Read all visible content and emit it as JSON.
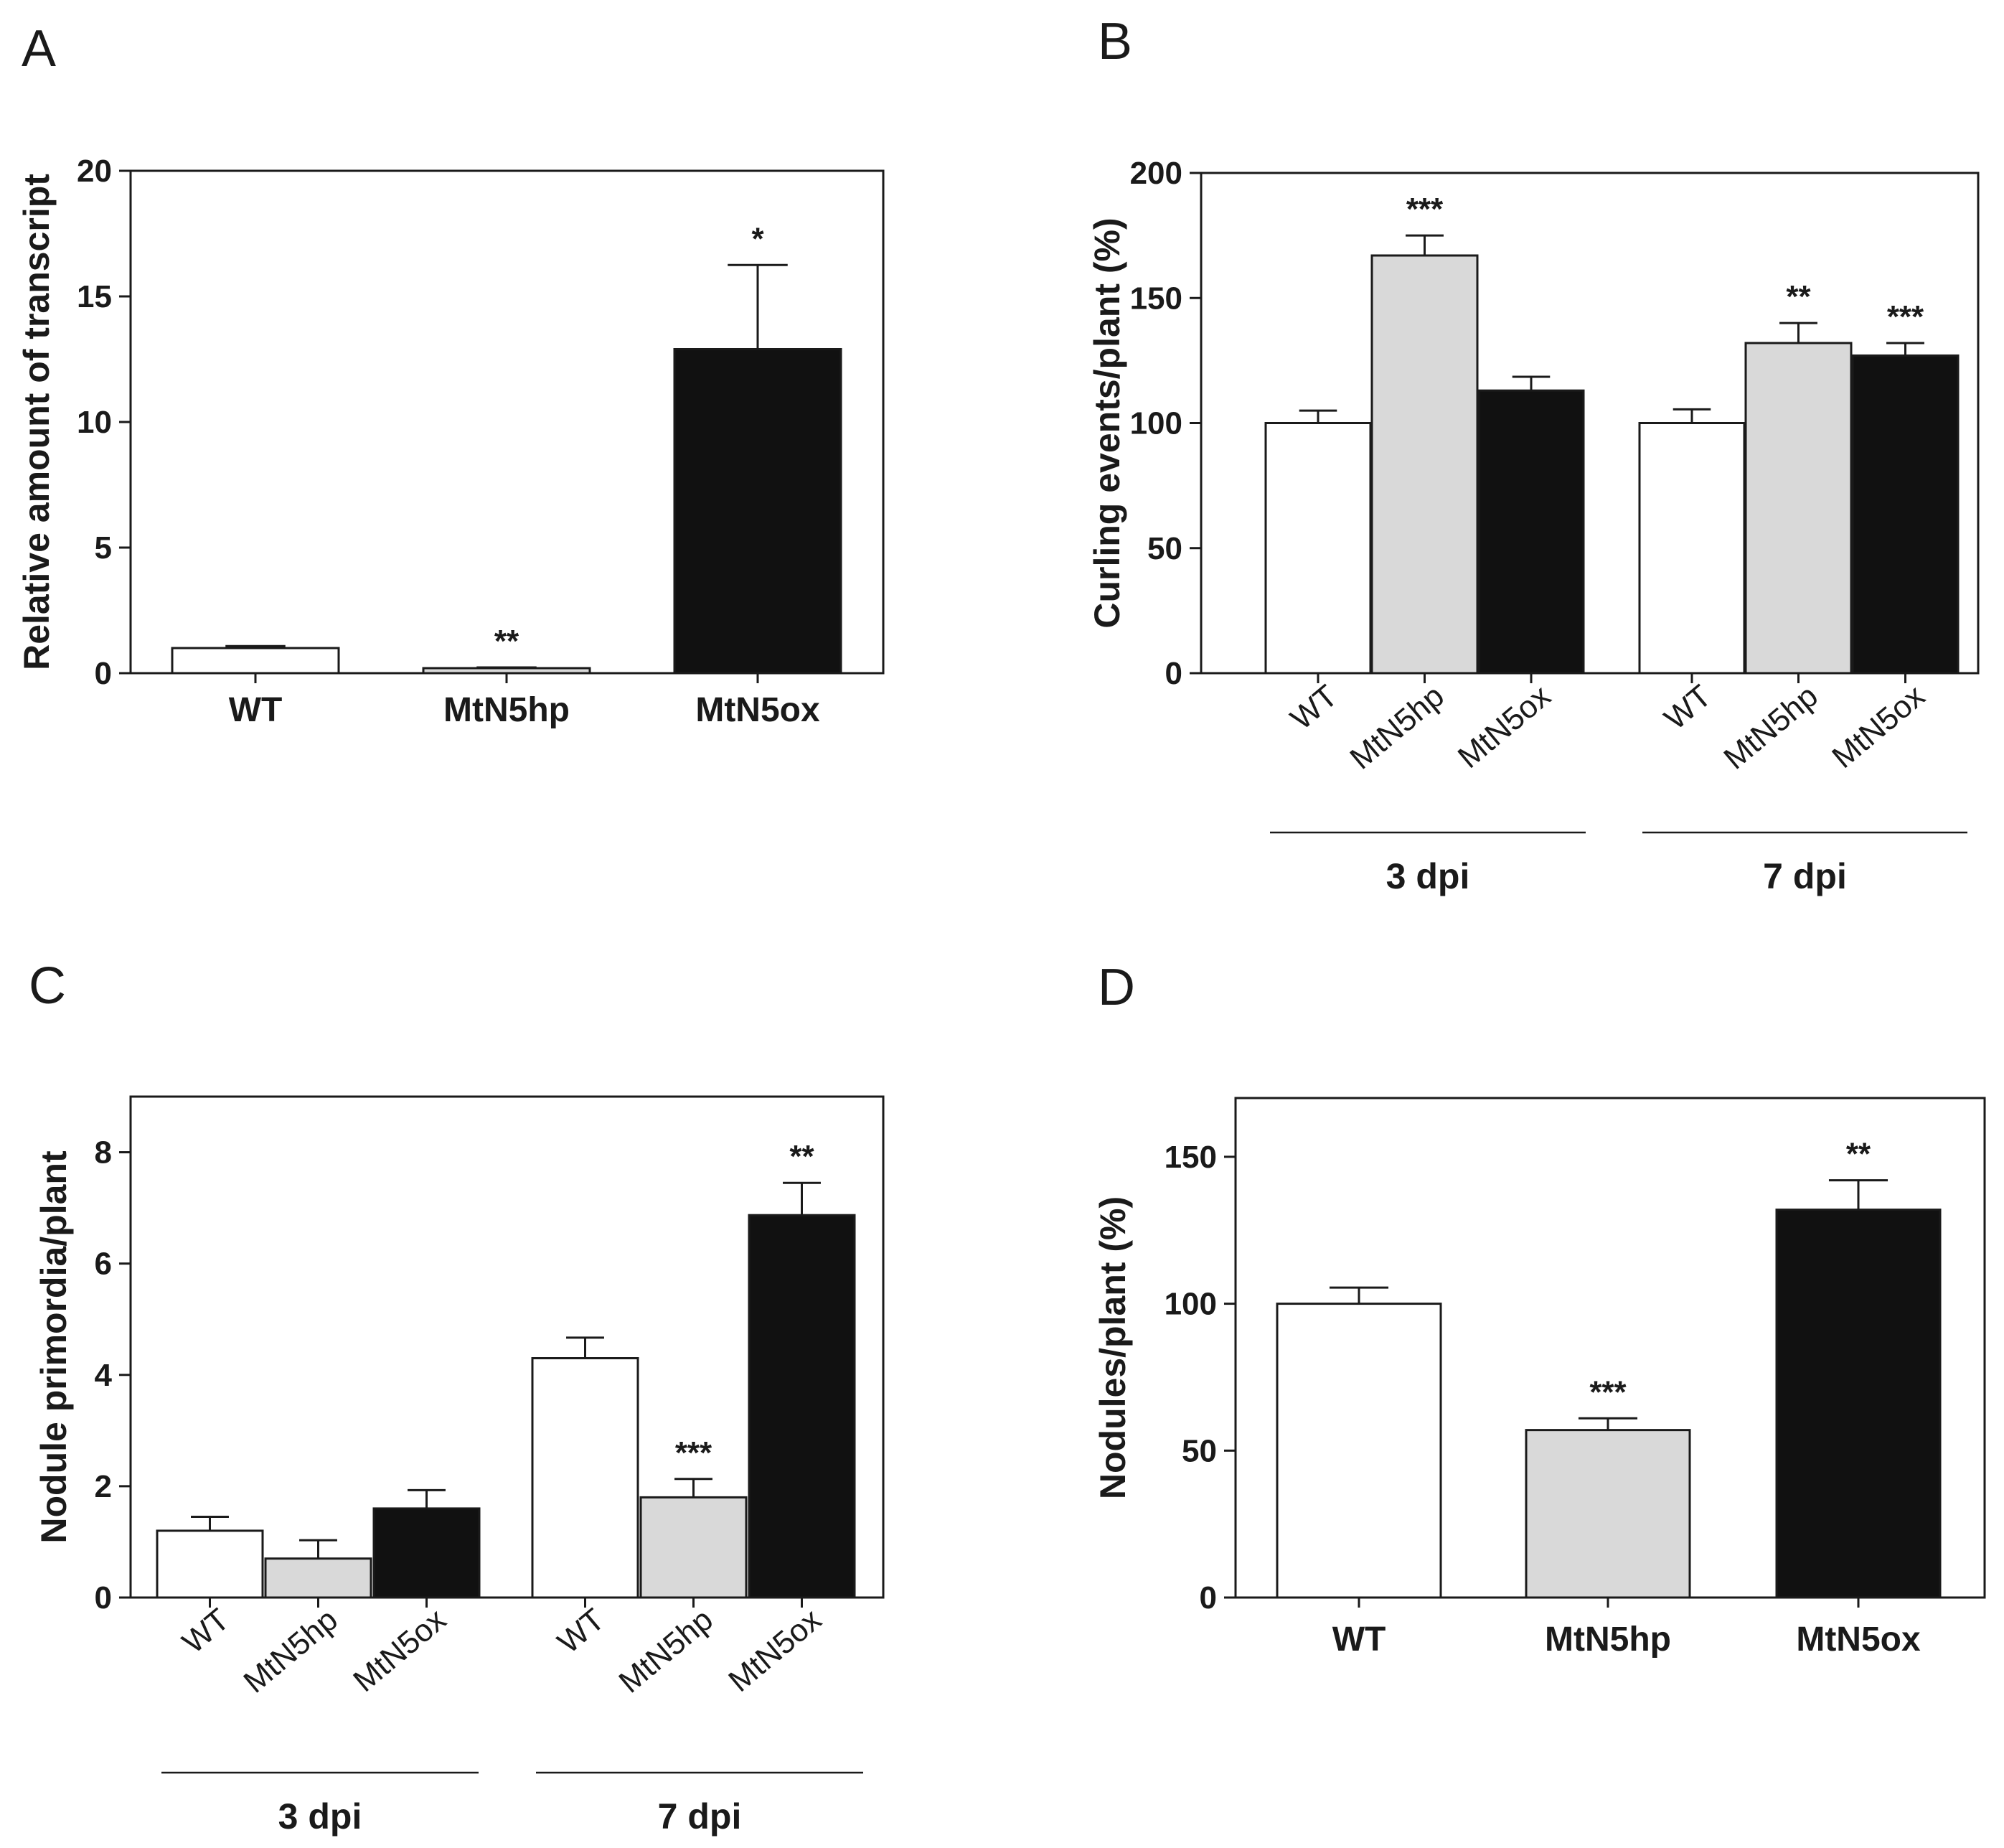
{
  "colors": {
    "WT": "#ffffff",
    "MtN5hp": "#d9d9d9",
    "MtN5ox": "#111111",
    "stroke": "#1a1a1a"
  },
  "chart_data": [
    {
      "id": "A",
      "panel_label": "A",
      "type": "bar",
      "ylabel": "Relative amount of transcript",
      "ylim": [
        0,
        20
      ],
      "yticks": [
        0,
        5,
        10,
        15,
        20
      ],
      "categories": [
        "WT",
        "MtN5hp",
        "MtN5ox"
      ],
      "series": [
        {
          "name": "",
          "values": [
            1.0,
            0.2,
            12.9
          ],
          "errors": [
            0.08,
            0.03,
            3.35
          ],
          "annotations": [
            "",
            "**",
            "*"
          ]
        }
      ]
    },
    {
      "id": "B",
      "panel_label": "B",
      "type": "bar",
      "ylabel": "Curling events/plant (%)",
      "ylim": [
        0,
        200
      ],
      "yticks": [
        0,
        50,
        100,
        150,
        200
      ],
      "groups": [
        "3 dpi",
        "7 dpi"
      ],
      "categories": [
        "WT",
        "MtN5hp",
        "MtN5ox"
      ],
      "series": [
        {
          "name": "3 dpi",
          "values": [
            100,
            167,
            113
          ],
          "errors": [
            5,
            8,
            5.5
          ],
          "annotations": [
            "",
            "***",
            ""
          ]
        },
        {
          "name": "7 dpi",
          "values": [
            100,
            132,
            127
          ],
          "errors": [
            5.5,
            8,
            5
          ],
          "annotations": [
            "",
            "**",
            "***"
          ]
        }
      ]
    },
    {
      "id": "C",
      "panel_label": "C",
      "type": "bar",
      "ylabel": "Nodule primordia/plant",
      "ylim": [
        0,
        9
      ],
      "yticks": [
        0,
        2,
        4,
        6,
        8
      ],
      "groups": [
        "3 dpi",
        "7 dpi"
      ],
      "categories": [
        "WT",
        "MtN5hp",
        "MtN5ox"
      ],
      "series": [
        {
          "name": "3 dpi",
          "values": [
            1.2,
            0.7,
            1.6
          ],
          "errors": [
            0.25,
            0.33,
            0.33
          ],
          "annotations": [
            "",
            "",
            ""
          ]
        },
        {
          "name": "7 dpi",
          "values": [
            4.3,
            1.8,
            6.87
          ],
          "errors": [
            0.37,
            0.33,
            0.58
          ],
          "annotations": [
            "",
            "***",
            "**"
          ]
        }
      ]
    },
    {
      "id": "D",
      "panel_label": "D",
      "type": "bar",
      "ylabel": "Nodules/plant (%)",
      "ylim": [
        0,
        170
      ],
      "yticks": [
        0,
        50,
        100,
        150
      ],
      "categories": [
        "WT",
        "MtN5hp",
        "MtN5ox"
      ],
      "series": [
        {
          "name": "",
          "values": [
            100,
            57,
            132
          ],
          "errors": [
            5.5,
            4,
            10
          ],
          "annotations": [
            "",
            "***",
            "**"
          ]
        }
      ]
    }
  ]
}
